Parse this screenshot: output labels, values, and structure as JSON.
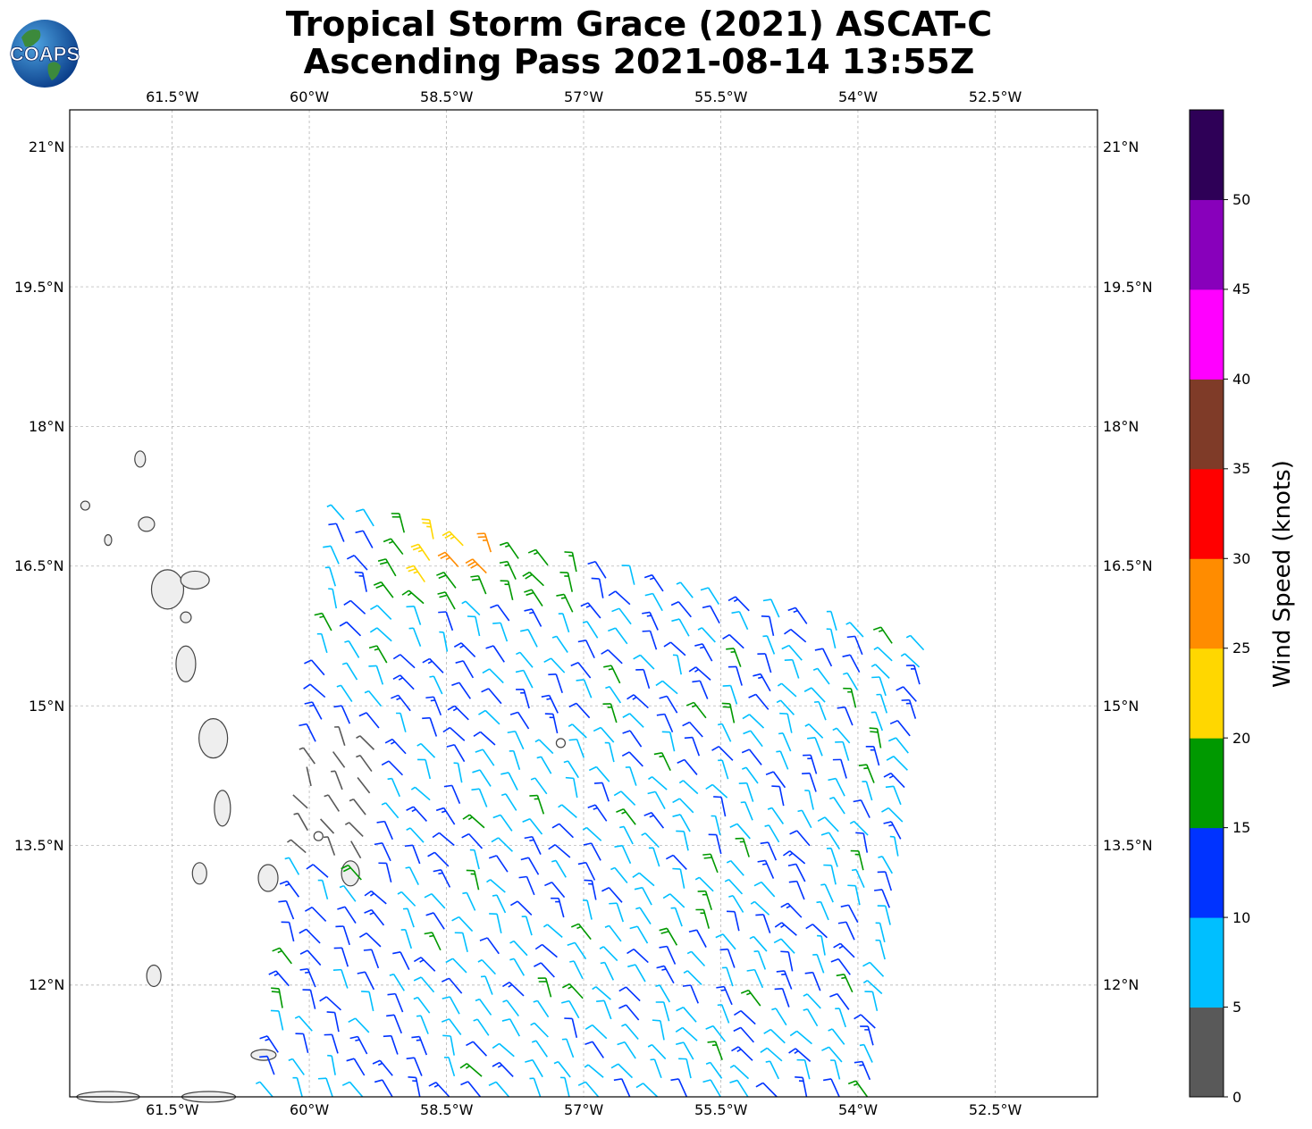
{
  "title_line1": "Tropical Storm Grace (2021) ASCAT-C",
  "title_line2": "Ascending Pass 2021-08-14 13:55Z",
  "logo_text": "COAPS",
  "map": {
    "lon_labels": [
      "61.5°W",
      "60°W",
      "58.5°W",
      "57°W",
      "55.5°W",
      "54°W",
      "52.5°W"
    ],
    "lon_values": [
      -61.5,
      -60,
      -58.5,
      -57,
      -55.5,
      -54,
      -52.5
    ],
    "lat_labels": [
      "21°N",
      "19.5°N",
      "18°N",
      "16.5°N",
      "15°N",
      "13.5°N",
      "12°N"
    ],
    "lat_values": [
      21,
      19.5,
      18,
      16.5,
      15,
      13.5,
      12
    ],
    "extent": {
      "lon_min": -62.62,
      "lon_max": -51.38,
      "lat_min": 10.8,
      "lat_max": 21.4
    }
  },
  "colorbar": {
    "label": "Wind Speed (knots)",
    "ticks": [
      "0",
      "5",
      "10",
      "15",
      "20",
      "25",
      "30",
      "35",
      "40",
      "45",
      "50"
    ],
    "colors": [
      "#595959",
      "#00bfff",
      "#0033ff",
      "#009900",
      "#ffd700",
      "#ff8c00",
      "#ff0000",
      "#7f3b28",
      "#ff00ff",
      "#8800bb",
      "#2e0057"
    ]
  },
  "chart_data": {
    "type": "wind_barbs",
    "swath_corners_lon_lat": [
      [
        -60.4,
        10.8
      ],
      [
        -53.9,
        10.8
      ],
      [
        -53.3,
        15.6
      ],
      [
        -59.6,
        17.0
      ]
    ],
    "wind_speed_ranges_knots": [
      [
        0,
        5
      ],
      [
        5,
        10
      ],
      [
        10,
        15
      ],
      [
        15,
        20
      ],
      [
        20,
        25
      ],
      [
        25,
        30
      ],
      [
        30,
        35
      ],
      [
        35,
        40
      ],
      [
        40,
        45
      ],
      [
        45,
        50
      ],
      [
        50,
        55
      ]
    ]
  }
}
